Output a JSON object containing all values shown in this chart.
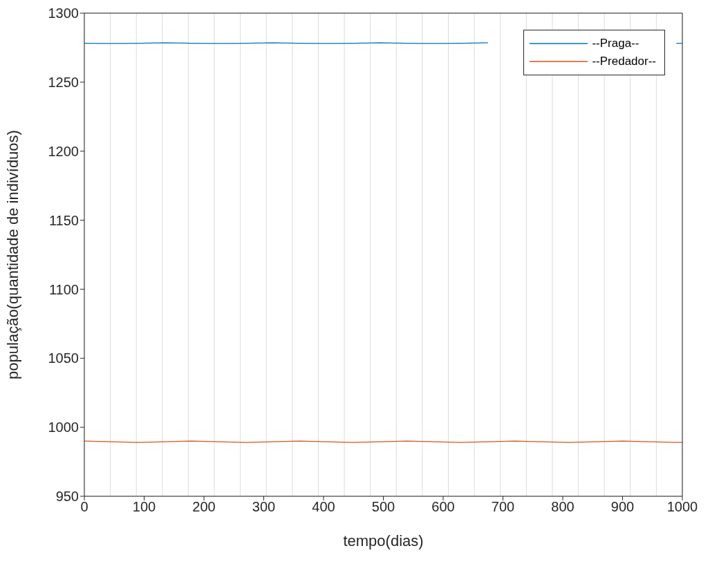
{
  "chart_data": {
    "type": "line",
    "xlabel": "tempo(dias)",
    "ylabel": "população(quantidade de indivíduos)",
    "x": [
      0,
      45,
      90,
      135,
      180,
      225,
      270,
      315,
      360,
      405,
      450,
      495,
      540,
      585,
      630,
      675,
      720,
      765,
      810,
      855,
      900,
      945,
      990,
      1000
    ],
    "series": [
      {
        "name": "--Praga--",
        "color": "#0072bd",
        "values": [
          1278.2,
          1278,
          1278.2,
          1278.5,
          1278.2,
          1278,
          1278.2,
          1278.5,
          1278.2,
          1278,
          1278.2,
          1278.5,
          1278.2,
          1278,
          1278.2,
          1278.5,
          null,
          null,
          null,
          null,
          null,
          null,
          1278.2,
          1278.2
        ]
      },
      {
        "name": "--Predador--",
        "color": "#d95319",
        "values": [
          990,
          989.5,
          989,
          989.5,
          990,
          989.5,
          989,
          989.5,
          990,
          989.5,
          989,
          989.5,
          990,
          989.5,
          989,
          989.5,
          990,
          989.5,
          989,
          989.5,
          990,
          989.5,
          989,
          989
        ]
      }
    ],
    "xlim": [
      0,
      1000
    ],
    "xticks": [
      0,
      100,
      200,
      300,
      400,
      500,
      600,
      700,
      800,
      900,
      1000
    ],
    "ylim": [
      950,
      1300
    ],
    "yticks": [
      950,
      1000,
      1050,
      1100,
      1150,
      1200,
      1250,
      1300
    ],
    "grid": true,
    "legend": "top right",
    "marker": "none",
    "line_style": "solid"
  }
}
